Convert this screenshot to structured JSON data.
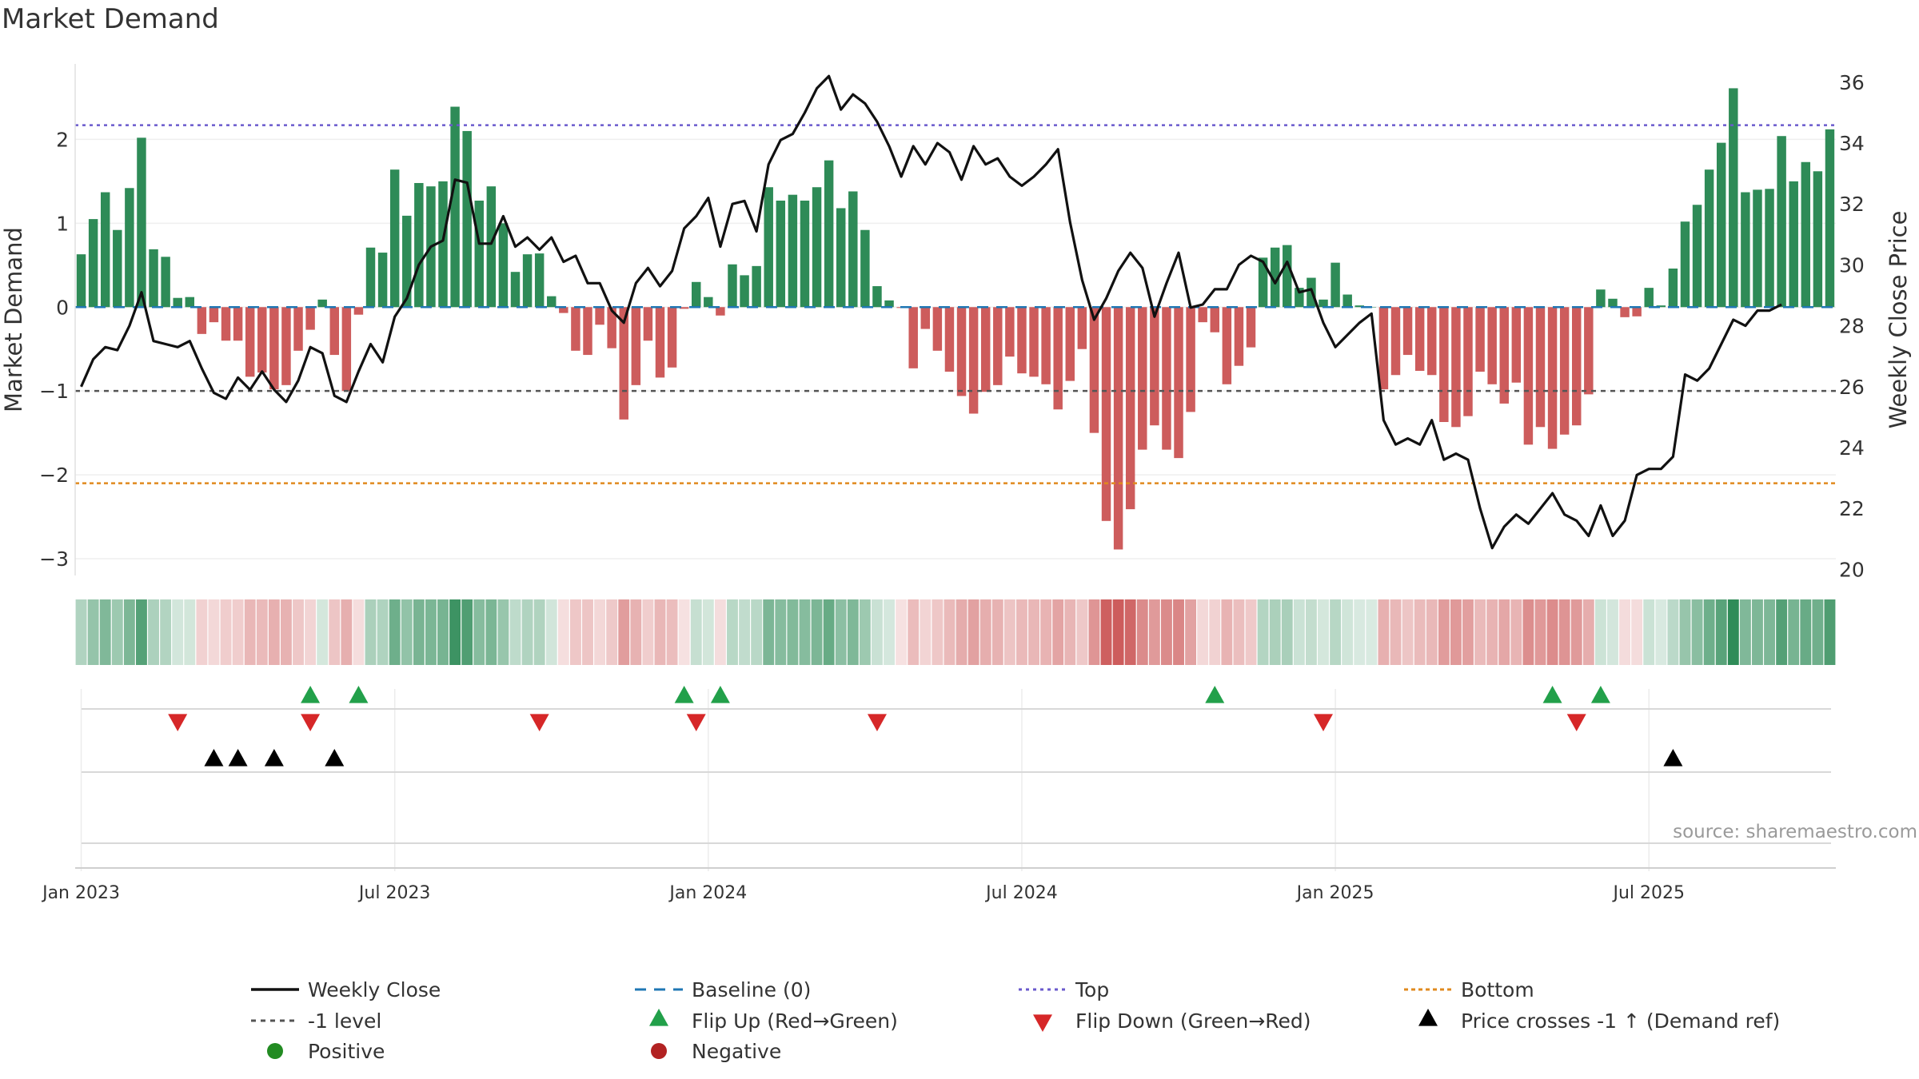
{
  "title": "Market Demand",
  "chart_data": {
    "type": "bar",
    "title": "Market Demand",
    "ylabel_left": "Market Demand",
    "ylabel_right": "Weekly Close Price",
    "ylim_left": [
      -3.2,
      2.9
    ],
    "ylim_right": [
      19.8,
      36.6
    ],
    "yticks_left": [
      2,
      1,
      0,
      -1,
      -2,
      -3
    ],
    "ytick_labels_left": [
      "2",
      "1",
      "0",
      "−1",
      "−2",
      "−3"
    ],
    "yticks_right": [
      36,
      34,
      32,
      30,
      28,
      26,
      24,
      22,
      20
    ],
    "ytick_labels_right": [
      "36",
      "34",
      "32",
      "30",
      "28",
      "26",
      "24",
      "22",
      "20"
    ],
    "x_ticks": [
      {
        "week": 1,
        "label": "Jan 2023"
      },
      {
        "week": 27,
        "label": "Jul 2023"
      },
      {
        "week": 53,
        "label": "Jan 2024"
      },
      {
        "week": 79,
        "label": "Jul 2024"
      },
      {
        "week": 105,
        "label": "Jan 2025"
      },
      {
        "week": 131,
        "label": "Jul 2025"
      }
    ],
    "levels": {
      "top": 2.17,
      "bottom": -2.1,
      "minus_one": -1,
      "baseline": 0
    },
    "demand": [
      0.63,
      1.05,
      1.37,
      0.92,
      1.42,
      2.02,
      0.69,
      0.6,
      0.11,
      0.12,
      -0.32,
      -0.18,
      -0.4,
      -0.4,
      -0.83,
      -0.78,
      -0.98,
      -0.93,
      -0.52,
      -0.27,
      0.09,
      -0.57,
      -1.0,
      -0.09,
      0.71,
      0.65,
      1.64,
      1.09,
      1.48,
      1.44,
      1.5,
      2.39,
      2.1,
      1.27,
      1.44,
      1.0,
      0.42,
      0.63,
      0.64,
      0.13,
      -0.07,
      -0.52,
      -0.57,
      -0.21,
      -0.49,
      -1.34,
      -0.93,
      -0.4,
      -0.84,
      -0.72,
      -0.02,
      0.3,
      0.12,
      -0.1,
      0.51,
      0.38,
      0.49,
      1.43,
      1.27,
      1.34,
      1.27,
      1.43,
      1.75,
      1.18,
      1.38,
      0.92,
      0.25,
      0.08,
      -0.01,
      -0.73,
      -0.26,
      -0.52,
      -0.77,
      -1.06,
      -1.27,
      -1.01,
      -0.93,
      -0.59,
      -0.79,
      -0.83,
      -0.92,
      -1.22,
      -0.88,
      -0.5,
      -1.5,
      -2.55,
      -2.89,
      -2.41,
      -1.7,
      -1.41,
      -1.7,
      -1.8,
      -1.25,
      -0.18,
      -0.3,
      -0.92,
      -0.7,
      -0.48,
      0.59,
      0.71,
      0.74,
      0.23,
      0.35,
      0.09,
      0.53,
      0.15,
      0.02,
      0.0,
      -0.98,
      -0.81,
      -0.57,
      -0.76,
      -0.81,
      -1.37,
      -1.43,
      -1.3,
      -0.77,
      -0.92,
      -1.15,
      -0.9,
      -1.64,
      -1.43,
      -1.69,
      -1.52,
      -1.41,
      -1.04,
      0.21,
      0.1,
      -0.12,
      -0.11,
      0.23,
      0.02,
      0.46,
      1.02,
      1.22,
      1.64,
      1.96,
      2.61,
      1.37,
      1.4,
      1.41,
      2.04,
      1.5,
      1.73,
      1.62,
      2.12
    ],
    "price": [
      26.0,
      26.9,
      27.3,
      27.2,
      28.0,
      29.1,
      27.5,
      27.4,
      27.3,
      27.5,
      26.6,
      25.8,
      25.6,
      26.3,
      25.9,
      26.5,
      25.9,
      25.5,
      26.2,
      27.3,
      27.1,
      25.7,
      25.5,
      26.5,
      27.4,
      26.8,
      28.3,
      28.9,
      30.0,
      30.6,
      30.8,
      32.8,
      32.7,
      30.7,
      30.7,
      31.6,
      30.6,
      30.9,
      30.5,
      30.9,
      30.1,
      30.3,
      29.4,
      29.4,
      28.5,
      28.1,
      29.4,
      29.9,
      29.3,
      29.8,
      31.2,
      31.6,
      32.2,
      30.6,
      32.0,
      32.1,
      31.1,
      33.3,
      34.1,
      34.3,
      35.0,
      35.8,
      36.2,
      35.1,
      35.6,
      35.3,
      34.7,
      33.9,
      32.9,
      33.9,
      33.3,
      34.0,
      33.7,
      32.8,
      33.9,
      33.3,
      33.5,
      32.9,
      32.6,
      32.9,
      33.3,
      33.8,
      31.4,
      29.5,
      28.2,
      28.9,
      29.8,
      30.4,
      29.9,
      28.3,
      29.4,
      30.4,
      28.6,
      28.7,
      29.2,
      29.2,
      30.0,
      30.3,
      30.1,
      29.4,
      30.1,
      29.1,
      29.2,
      28.1,
      27.3,
      27.7,
      28.1,
      28.4,
      24.9,
      24.1,
      24.3,
      24.1,
      24.9,
      23.6,
      23.8,
      23.6,
      22.0,
      20.7,
      21.4,
      21.8,
      21.5,
      22.0,
      22.5,
      21.8,
      21.6,
      21.1,
      22.1,
      21.1,
      21.6,
      23.1,
      23.3,
      23.3,
      23.7,
      26.4,
      26.2,
      26.6,
      27.4,
      28.2,
      28.0,
      28.5,
      28.5,
      28.7
    ],
    "flip_up_weeks": [
      20,
      24,
      51,
      54,
      95,
      123,
      127
    ],
    "flip_down_weeks": [
      9,
      20,
      39,
      52,
      67,
      104,
      125
    ],
    "price_cross_weeks": [
      12,
      14,
      17,
      22,
      133
    ],
    "legend": {
      "weekly_close": "Weekly Close",
      "baseline": "Baseline (0)",
      "top": "Top",
      "bottom": "Bottom",
      "minus_one": "-1 level",
      "flip_up": "Flip Up (Red→Green)",
      "flip_down": "Flip Down (Green→Red)",
      "price_cross": "Price crosses -1 ↑ (Demand ref)",
      "positive": "Positive",
      "negative": "Negative"
    },
    "source": "source: sharemaestro.com"
  },
  "colors": {
    "positive": "#2e8b57",
    "negative": "#cd5c5c",
    "price": "#111111",
    "baseline": "#1f77b4",
    "top": "#6a5acd",
    "bottom": "#e08a1e",
    "minus_one": "#555555",
    "flip_up": "#22a04a",
    "flip_down": "#d62728",
    "cross": "#000000",
    "positive_dot": "#228b22",
    "negative_dot": "#b22222"
  }
}
